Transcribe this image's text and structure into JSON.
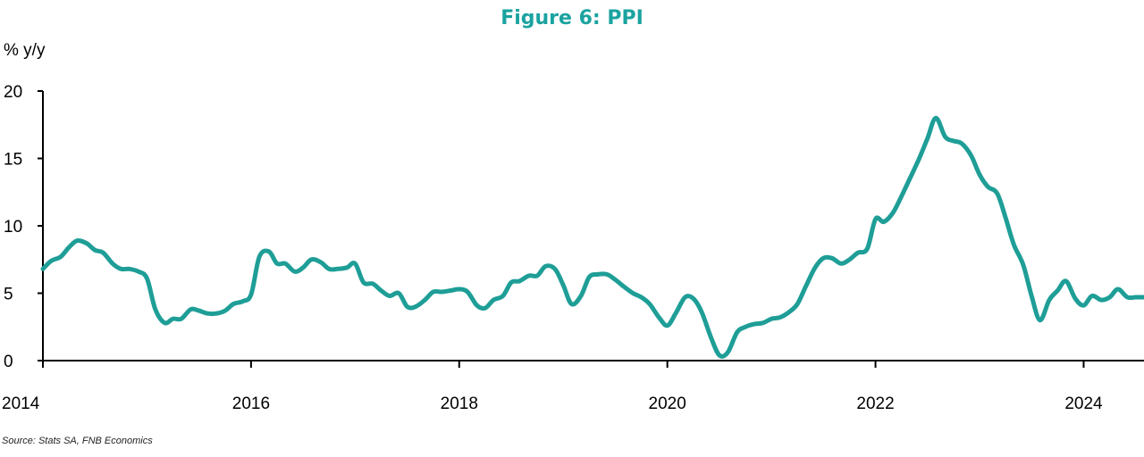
{
  "colors": {
    "title": "#1aa3a0",
    "line": "#1e9e97",
    "axis": "#000000"
  },
  "chart_data": {
    "type": "line",
    "title": "Figure 6: PPI",
    "ylabel": "% y/y",
    "xlabel": "",
    "source": "Source: Stats SA, FNB Economics",
    "ylim": [
      0,
      20
    ],
    "xlim": [
      2014.0,
      2024.58
    ],
    "yticks": [
      "0",
      "5",
      "10",
      "15",
      "20"
    ],
    "xticks": [
      "2014",
      "2016",
      "2018",
      "2020",
      "2022",
      "2024"
    ],
    "grid": false,
    "legend": "none",
    "series": [
      {
        "values": [
          [
            2014.0,
            6.8
          ],
          [
            2014.08,
            7.4
          ],
          [
            2014.17,
            7.7
          ],
          [
            2014.25,
            8.4
          ],
          [
            2014.33,
            8.9
          ],
          [
            2014.42,
            8.7
          ],
          [
            2014.5,
            8.2
          ],
          [
            2014.58,
            8.0
          ],
          [
            2014.67,
            7.2
          ],
          [
            2014.75,
            6.8
          ],
          [
            2014.83,
            6.8
          ],
          [
            2014.92,
            6.6
          ],
          [
            2015.0,
            6.1
          ],
          [
            2015.08,
            3.8
          ],
          [
            2015.17,
            2.8
          ],
          [
            2015.25,
            3.1
          ],
          [
            2015.33,
            3.1
          ],
          [
            2015.42,
            3.8
          ],
          [
            2015.5,
            3.7
          ],
          [
            2015.58,
            3.5
          ],
          [
            2015.67,
            3.5
          ],
          [
            2015.75,
            3.7
          ],
          [
            2015.83,
            4.2
          ],
          [
            2015.92,
            4.4
          ],
          [
            2016.0,
            4.9
          ],
          [
            2016.08,
            7.7
          ],
          [
            2016.17,
            8.1
          ],
          [
            2016.25,
            7.2
          ],
          [
            2016.33,
            7.2
          ],
          [
            2016.42,
            6.6
          ],
          [
            2016.5,
            6.9
          ],
          [
            2016.58,
            7.5
          ],
          [
            2016.67,
            7.3
          ],
          [
            2016.75,
            6.8
          ],
          [
            2016.83,
            6.8
          ],
          [
            2016.92,
            6.9
          ],
          [
            2017.0,
            7.2
          ],
          [
            2017.08,
            5.8
          ],
          [
            2017.17,
            5.7
          ],
          [
            2017.25,
            5.2
          ],
          [
            2017.33,
            4.8
          ],
          [
            2017.42,
            5.0
          ],
          [
            2017.5,
            4.0
          ],
          [
            2017.58,
            4.0
          ],
          [
            2017.67,
            4.5
          ],
          [
            2017.75,
            5.1
          ],
          [
            2017.83,
            5.1
          ],
          [
            2017.92,
            5.2
          ],
          [
            2018.0,
            5.3
          ],
          [
            2018.08,
            5.1
          ],
          [
            2018.17,
            4.1
          ],
          [
            2018.25,
            3.9
          ],
          [
            2018.33,
            4.5
          ],
          [
            2018.42,
            4.8
          ],
          [
            2018.5,
            5.8
          ],
          [
            2018.58,
            5.9
          ],
          [
            2018.67,
            6.3
          ],
          [
            2018.75,
            6.3
          ],
          [
            2018.83,
            7.0
          ],
          [
            2018.92,
            6.8
          ],
          [
            2019.0,
            5.6
          ],
          [
            2019.08,
            4.2
          ],
          [
            2019.17,
            4.8
          ],
          [
            2019.25,
            6.2
          ],
          [
            2019.33,
            6.4
          ],
          [
            2019.42,
            6.4
          ],
          [
            2019.5,
            6.0
          ],
          [
            2019.58,
            5.5
          ],
          [
            2019.67,
            5.0
          ],
          [
            2019.75,
            4.7
          ],
          [
            2019.83,
            4.2
          ],
          [
            2019.92,
            3.2
          ],
          [
            2020.0,
            2.6
          ],
          [
            2020.08,
            3.5
          ],
          [
            2020.17,
            4.7
          ],
          [
            2020.25,
            4.6
          ],
          [
            2020.33,
            3.6
          ],
          [
            2020.42,
            1.7
          ],
          [
            2020.5,
            0.4
          ],
          [
            2020.58,
            0.6
          ],
          [
            2020.67,
            2.1
          ],
          [
            2020.75,
            2.5
          ],
          [
            2020.83,
            2.7
          ],
          [
            2020.92,
            2.8
          ],
          [
            2021.0,
            3.1
          ],
          [
            2021.08,
            3.2
          ],
          [
            2021.17,
            3.6
          ],
          [
            2021.25,
            4.2
          ],
          [
            2021.33,
            5.5
          ],
          [
            2021.42,
            6.9
          ],
          [
            2021.5,
            7.6
          ],
          [
            2021.58,
            7.6
          ],
          [
            2021.67,
            7.2
          ],
          [
            2021.75,
            7.5
          ],
          [
            2021.83,
            8.0
          ],
          [
            2021.92,
            8.3
          ],
          [
            2022.0,
            10.5
          ],
          [
            2022.08,
            10.3
          ],
          [
            2022.17,
            11.0
          ],
          [
            2022.25,
            12.2
          ],
          [
            2022.33,
            13.5
          ],
          [
            2022.42,
            15.0
          ],
          [
            2022.5,
            16.5
          ],
          [
            2022.58,
            18.0
          ],
          [
            2022.67,
            16.6
          ],
          [
            2022.75,
            16.3
          ],
          [
            2022.83,
            16.1
          ],
          [
            2022.92,
            15.2
          ],
          [
            2023.0,
            13.8
          ],
          [
            2023.08,
            12.9
          ],
          [
            2023.17,
            12.4
          ],
          [
            2023.25,
            10.6
          ],
          [
            2023.33,
            8.6
          ],
          [
            2023.42,
            7.1
          ],
          [
            2023.5,
            4.8
          ],
          [
            2023.58,
            3.0
          ],
          [
            2023.67,
            4.5
          ],
          [
            2023.75,
            5.2
          ],
          [
            2023.83,
            5.9
          ],
          [
            2023.92,
            4.6
          ],
          [
            2024.0,
            4.1
          ],
          [
            2024.08,
            4.8
          ],
          [
            2024.17,
            4.5
          ],
          [
            2024.25,
            4.7
          ],
          [
            2024.33,
            5.3
          ],
          [
            2024.42,
            4.7
          ],
          [
            2024.5,
            4.7
          ],
          [
            2024.58,
            4.7
          ]
        ]
      }
    ]
  }
}
